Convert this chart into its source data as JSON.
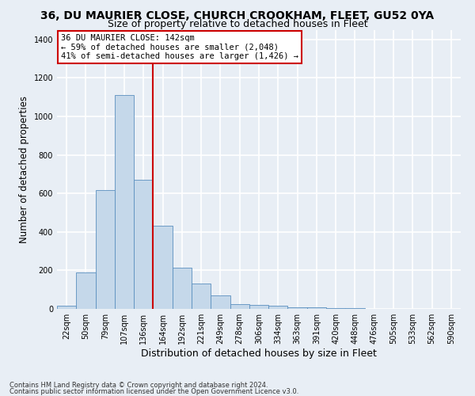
{
  "title1": "36, DU MAURIER CLOSE, CHURCH CROOKHAM, FLEET, GU52 0YA",
  "title2": "Size of property relative to detached houses in Fleet",
  "xlabel": "Distribution of detached houses by size in Fleet",
  "ylabel": "Number of detached properties",
  "footnote1": "Contains HM Land Registry data © Crown copyright and database right 2024.",
  "footnote2": "Contains public sector information licensed under the Open Government Licence v3.0.",
  "bar_labels": [
    "22sqm",
    "50sqm",
    "79sqm",
    "107sqm",
    "136sqm",
    "164sqm",
    "192sqm",
    "221sqm",
    "249sqm",
    "278sqm",
    "306sqm",
    "334sqm",
    "363sqm",
    "391sqm",
    "420sqm",
    "448sqm",
    "476sqm",
    "505sqm",
    "533sqm",
    "562sqm",
    "590sqm"
  ],
  "bar_values": [
    15,
    190,
    615,
    1110,
    670,
    430,
    215,
    130,
    70,
    25,
    20,
    18,
    10,
    8,
    5,
    3,
    2,
    2,
    1,
    1,
    1
  ],
  "bar_color": "#c5d8ea",
  "bar_edge_color": "#5a8fbf",
  "vline_x": 4,
  "vline_color": "#cc0000",
  "annotation_text": "36 DU MAURIER CLOSE: 142sqm\n← 59% of detached houses are smaller (2,048)\n41% of semi-detached houses are larger (1,426) →",
  "annotation_box_color": "#ffffff",
  "annotation_border_color": "#cc0000",
  "ylim": [
    0,
    1450
  ],
  "yticks": [
    0,
    200,
    400,
    600,
    800,
    1000,
    1200,
    1400
  ],
  "background_color": "#e8eef5",
  "grid_color": "#ffffff",
  "title1_fontsize": 10,
  "title2_fontsize": 9,
  "annotation_fontsize": 7.5,
  "xlabel_fontsize": 9,
  "ylabel_fontsize": 8.5,
  "footnote_fontsize": 6,
  "tick_fontsize": 7
}
